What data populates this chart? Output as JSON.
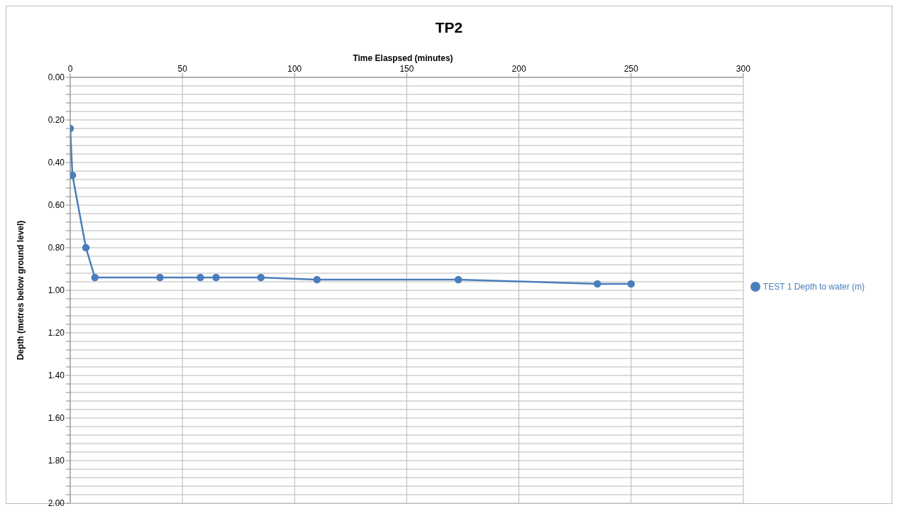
{
  "chart_data": {
    "type": "line",
    "title": "TP2",
    "xlabel": "Time Elaspsed (minutes)",
    "ylabel": "Depth (metres below ground level)",
    "x": [
      0,
      1,
      7,
      11,
      40,
      58,
      65,
      85,
      110,
      173,
      235,
      250
    ],
    "series": [
      {
        "name": "TEST 1 Depth to water (m)",
        "color": "#4a7ebb",
        "values": [
          0.24,
          0.46,
          0.8,
          0.94,
          0.94,
          0.94,
          0.94,
          0.94,
          0.95,
          0.95,
          0.97,
          0.97
        ]
      }
    ],
    "xlim": [
      0,
      300
    ],
    "xticks": [
      0,
      50,
      100,
      150,
      200,
      250,
      300
    ],
    "ylim": [
      2,
      0
    ],
    "yticks": [
      {
        "value": 0,
        "label": "0.00"
      },
      {
        "value": 0.04,
        "label": null
      },
      {
        "value": 0.08,
        "label": null
      },
      {
        "value": 0.12,
        "label": null
      },
      {
        "value": 0.16,
        "label": null
      },
      {
        "value": 0.2,
        "label": "0.20"
      },
      {
        "value": 0.24,
        "label": null
      },
      {
        "value": 0.28,
        "label": null
      },
      {
        "value": 0.32,
        "label": null
      },
      {
        "value": 0.36,
        "label": null
      },
      {
        "value": 0.4,
        "label": "0.40"
      },
      {
        "value": 0.44,
        "label": null
      },
      {
        "value": 0.48,
        "label": null
      },
      {
        "value": 0.52,
        "label": null
      },
      {
        "value": 0.56,
        "label": null
      },
      {
        "value": 0.6,
        "label": "0.60"
      },
      {
        "value": 0.64,
        "label": null
      },
      {
        "value": 0.68,
        "label": null
      },
      {
        "value": 0.72,
        "label": null
      },
      {
        "value": 0.76,
        "label": null
      },
      {
        "value": 0.8,
        "label": "0.80"
      },
      {
        "value": 0.84,
        "label": null
      },
      {
        "value": 0.88,
        "label": null
      },
      {
        "value": 0.92,
        "label": null
      },
      {
        "value": 0.96,
        "label": null
      },
      {
        "value": 1,
        "label": "1.00"
      },
      {
        "value": 1.04,
        "label": null
      },
      {
        "value": 1.08,
        "label": null
      },
      {
        "value": 1.12,
        "label": null
      },
      {
        "value": 1.16,
        "label": null
      },
      {
        "value": 1.2,
        "label": "1.20"
      },
      {
        "value": 1.24,
        "label": null
      },
      {
        "value": 1.28,
        "label": null
      },
      {
        "value": 1.32,
        "label": null
      },
      {
        "value": 1.36,
        "label": null
      },
      {
        "value": 1.4,
        "label": "1.40"
      },
      {
        "value": 1.44,
        "label": null
      },
      {
        "value": 1.48,
        "label": null
      },
      {
        "value": 1.52,
        "label": null
      },
      {
        "value": 1.56,
        "label": null
      },
      {
        "value": 1.6,
        "label": "1.60"
      },
      {
        "value": 1.64,
        "label": null
      },
      {
        "value": 1.68,
        "label": null
      },
      {
        "value": 1.72,
        "label": null
      },
      {
        "value": 1.76,
        "label": null
      },
      {
        "value": 1.8,
        "label": "1.80"
      },
      {
        "value": 1.84,
        "label": null
      },
      {
        "value": 1.88,
        "label": null
      },
      {
        "value": 1.92,
        "label": null
      },
      {
        "value": 1.96,
        "label": null
      },
      {
        "value": 2,
        "label": "2.00"
      }
    ],
    "grid": true,
    "legend": "right",
    "marker": "circle",
    "line_style": "solid"
  }
}
